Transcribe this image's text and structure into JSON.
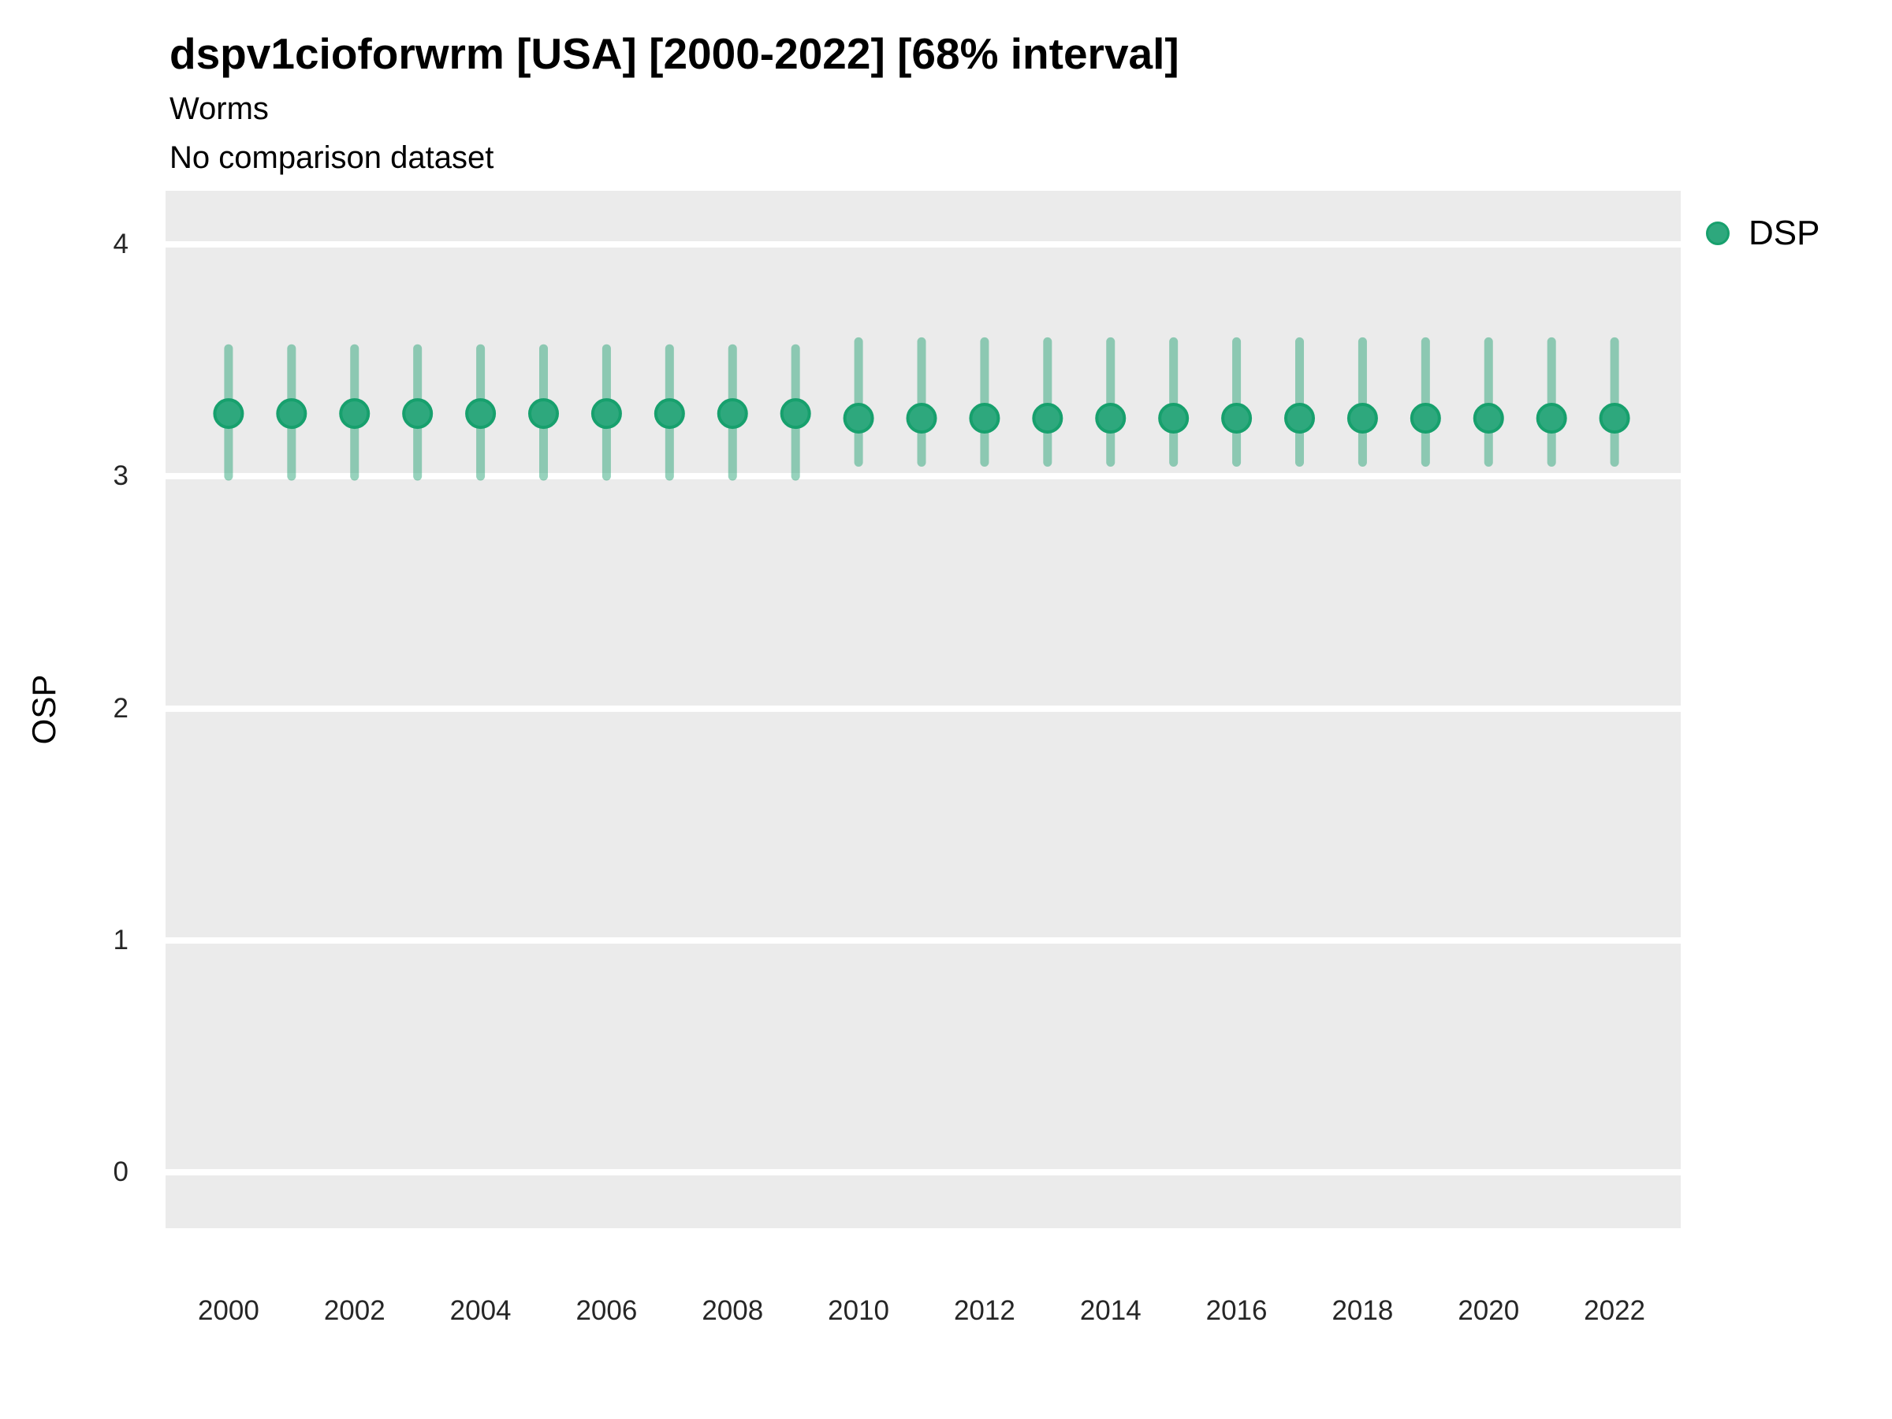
{
  "chart_data": {
    "type": "scatter",
    "title": "dspv1cioforwrm [USA] [2000-2022] [68% interval]",
    "subtitle": "Worms",
    "note": "No comparison dataset",
    "interval_label": "68% interval",
    "country": "USA",
    "year_range": "2000-2022",
    "xlabel": "",
    "ylabel": "OSP",
    "legend": {
      "position": "right",
      "entries": [
        {
          "label": "DSP",
          "marker": "circle-icon"
        }
      ]
    },
    "xlim": [
      1999.0,
      2023.05
    ],
    "ylim": [
      -0.24,
      4.23
    ],
    "xticks": [
      "2000",
      "2002",
      "2004",
      "2006",
      "2008",
      "2010",
      "2012",
      "2014",
      "2016",
      "2018",
      "2020",
      "2022"
    ],
    "yticks": [
      "0",
      "1",
      "2",
      "3",
      "4"
    ],
    "grid": "horizontal-major-only",
    "series": [
      {
        "name": "DSP",
        "points": [
          {
            "x": 2000,
            "mid": 3.27,
            "lo": 3.0,
            "hi": 3.55
          },
          {
            "x": 2001,
            "mid": 3.27,
            "lo": 3.0,
            "hi": 3.55
          },
          {
            "x": 2002,
            "mid": 3.27,
            "lo": 3.0,
            "hi": 3.55
          },
          {
            "x": 2003,
            "mid": 3.27,
            "lo": 3.0,
            "hi": 3.55
          },
          {
            "x": 2004,
            "mid": 3.27,
            "lo": 3.0,
            "hi": 3.55
          },
          {
            "x": 2005,
            "mid": 3.27,
            "lo": 3.0,
            "hi": 3.55
          },
          {
            "x": 2006,
            "mid": 3.27,
            "lo": 3.0,
            "hi": 3.55
          },
          {
            "x": 2007,
            "mid": 3.27,
            "lo": 3.0,
            "hi": 3.55
          },
          {
            "x": 2008,
            "mid": 3.27,
            "lo": 3.0,
            "hi": 3.55
          },
          {
            "x": 2009,
            "mid": 3.27,
            "lo": 3.0,
            "hi": 3.55
          },
          {
            "x": 2010,
            "mid": 3.25,
            "lo": 3.06,
            "hi": 3.58
          },
          {
            "x": 2011,
            "mid": 3.25,
            "lo": 3.06,
            "hi": 3.58
          },
          {
            "x": 2012,
            "mid": 3.25,
            "lo": 3.06,
            "hi": 3.58
          },
          {
            "x": 2013,
            "mid": 3.25,
            "lo": 3.06,
            "hi": 3.58
          },
          {
            "x": 2014,
            "mid": 3.25,
            "lo": 3.06,
            "hi": 3.58
          },
          {
            "x": 2015,
            "mid": 3.25,
            "lo": 3.06,
            "hi": 3.58
          },
          {
            "x": 2016,
            "mid": 3.25,
            "lo": 3.06,
            "hi": 3.58
          },
          {
            "x": 2017,
            "mid": 3.25,
            "lo": 3.06,
            "hi": 3.58
          },
          {
            "x": 2018,
            "mid": 3.25,
            "lo": 3.06,
            "hi": 3.58
          },
          {
            "x": 2019,
            "mid": 3.25,
            "lo": 3.06,
            "hi": 3.58
          },
          {
            "x": 2020,
            "mid": 3.25,
            "lo": 3.06,
            "hi": 3.58
          },
          {
            "x": 2021,
            "mid": 3.25,
            "lo": 3.06,
            "hi": 3.58
          },
          {
            "x": 2022,
            "mid": 3.25,
            "lo": 3.06,
            "hi": 3.58
          }
        ]
      }
    ]
  },
  "style": {
    "panel_bg": "#ebebeb",
    "gridline_color": "#ffffff",
    "point_fill": "#2ea87d",
    "point_stroke": "#17a06d",
    "interval_color": "rgba(46,166,121,0.5)",
    "title_color": "#000000",
    "tick_color": "#262626"
  }
}
